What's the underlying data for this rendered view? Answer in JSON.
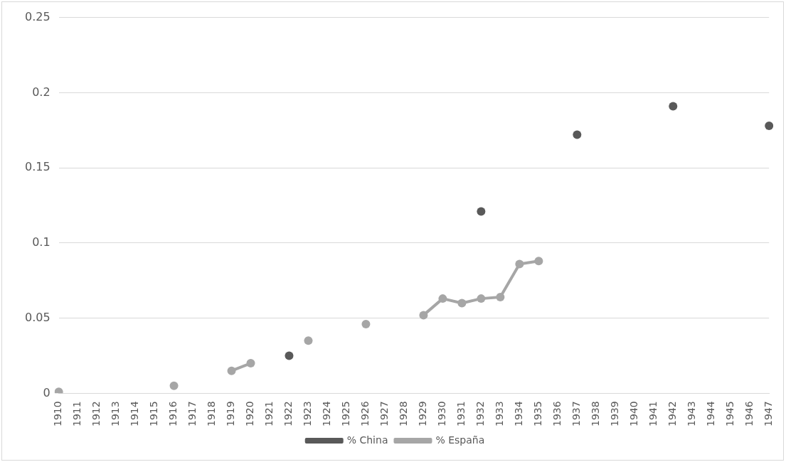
{
  "chart_data": {
    "type": "line",
    "categories": [
      "1910",
      "1911",
      "1912",
      "1913",
      "1914",
      "1915",
      "1916",
      "1917",
      "1918",
      "1919",
      "1920",
      "1921",
      "1922",
      "1923",
      "1924",
      "1925",
      "1926",
      "1927",
      "1928",
      "1929",
      "1930",
      "1931",
      "1932",
      "1933",
      "1934",
      "1935",
      "1936",
      "1937",
      "1938",
      "1939",
      "1940",
      "1941",
      "1942",
      "1943",
      "1944",
      "1945",
      "1946",
      "1947"
    ],
    "series": [
      {
        "name": "% China",
        "type": "scatter",
        "color": "#595959",
        "values": [
          null,
          null,
          null,
          null,
          null,
          null,
          null,
          null,
          null,
          null,
          null,
          null,
          0.025,
          null,
          null,
          null,
          null,
          null,
          null,
          null,
          null,
          null,
          0.121,
          null,
          null,
          null,
          null,
          0.172,
          null,
          null,
          null,
          null,
          0.191,
          null,
          null,
          null,
          null,
          0.178
        ]
      },
      {
        "name": "% España",
        "color": "#a6a6a6",
        "values": [
          0.001,
          null,
          null,
          null,
          null,
          null,
          0.005,
          null,
          null,
          0.015,
          0.02,
          null,
          null,
          0.035,
          null,
          null,
          0.046,
          null,
          null,
          0.052,
          0.063,
          0.06,
          0.063,
          0.064,
          0.086,
          0.088,
          null,
          null,
          null,
          null,
          null,
          null,
          null,
          null,
          null,
          null,
          null,
          null
        ]
      }
    ],
    "ylim": [
      0,
      0.25
    ],
    "yticks": [
      0,
      0.05,
      0.1,
      0.15,
      0.2,
      0.25
    ],
    "grid": "y",
    "legend": "bottom",
    "marker": "circle",
    "line_style": "solid"
  }
}
